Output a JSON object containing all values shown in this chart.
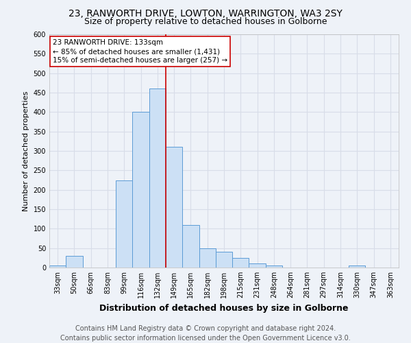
{
  "title1": "23, RANWORTH DRIVE, LOWTON, WARRINGTON, WA3 2SY",
  "title2": "Size of property relative to detached houses in Golborne",
  "xlabel": "Distribution of detached houses by size in Golborne",
  "ylabel": "Number of detached properties",
  "footer1": "Contains HM Land Registry data © Crown copyright and database right 2024.",
  "footer2": "Contains public sector information licensed under the Open Government Licence v3.0.",
  "bin_labels": [
    "33sqm",
    "50sqm",
    "66sqm",
    "83sqm",
    "99sqm",
    "116sqm",
    "132sqm",
    "149sqm",
    "165sqm",
    "182sqm",
    "198sqm",
    "215sqm",
    "231sqm",
    "248sqm",
    "264sqm",
    "281sqm",
    "297sqm",
    "314sqm",
    "330sqm",
    "347sqm",
    "363sqm"
  ],
  "bar_heights": [
    5,
    30,
    0,
    0,
    225,
    400,
    460,
    310,
    110,
    50,
    40,
    25,
    10,
    5,
    0,
    0,
    0,
    0,
    5,
    0,
    0
  ],
  "bar_color": "#cce0f5",
  "bar_edge_color": "#5b9bd5",
  "vline_x": 6.5,
  "vline_color": "#cc0000",
  "annotation_line1": "23 RANWORTH DRIVE: 133sqm",
  "annotation_line2": "← 85% of detached houses are smaller (1,431)",
  "annotation_line3": "15% of semi-detached houses are larger (257) →",
  "annotation_box_color": "white",
  "annotation_box_edge": "#cc0000",
  "ylim": [
    0,
    600
  ],
  "yticks": [
    0,
    50,
    100,
    150,
    200,
    250,
    300,
    350,
    400,
    450,
    500,
    550,
    600
  ],
  "bg_color": "#eef2f8",
  "grid_color": "#d8dde8",
  "title1_fontsize": 10,
  "title2_fontsize": 9,
  "xlabel_fontsize": 9,
  "ylabel_fontsize": 8,
  "tick_fontsize": 7,
  "footer_fontsize": 7,
  "annot_fontsize": 7.5
}
